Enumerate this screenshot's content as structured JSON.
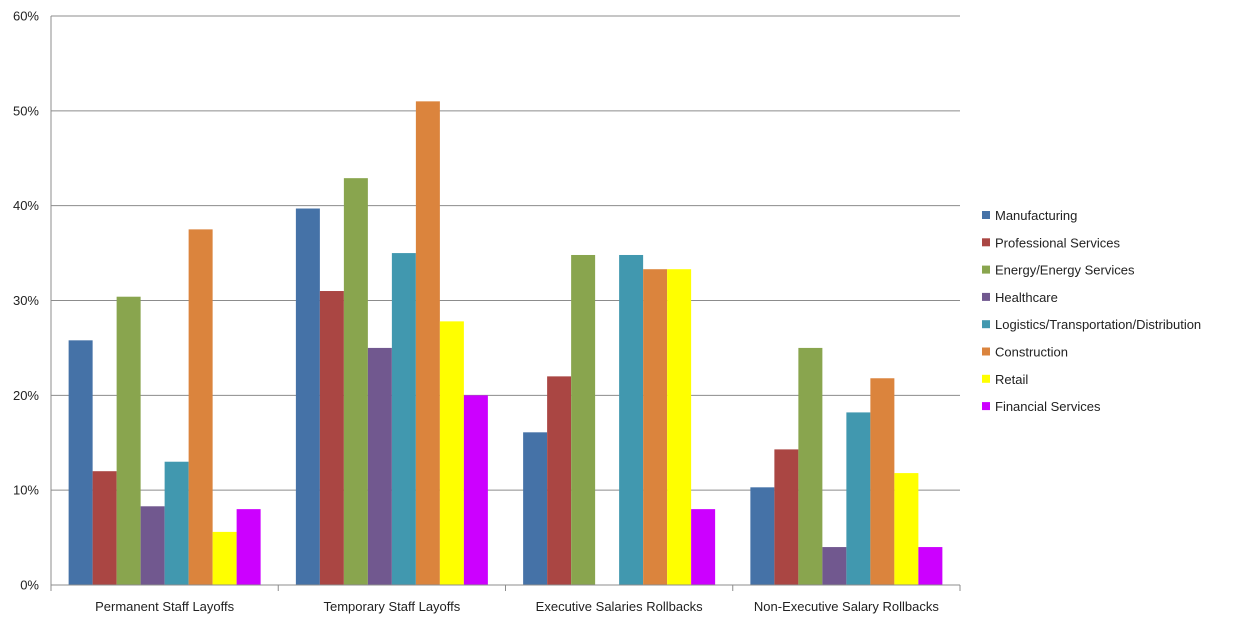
{
  "chart_data": {
    "type": "bar",
    "title": "",
    "xlabel": "",
    "ylabel": "",
    "ylim": [
      0,
      60
    ],
    "yticks": [
      "0%",
      "10%",
      "20%",
      "30%",
      "40%",
      "50%",
      "60%"
    ],
    "grid": true,
    "legend_position": "right",
    "categories": [
      "Permanent Staff Layoffs",
      "Temporary Staff Layoffs",
      "Executive Salaries Rollbacks",
      "Non-Executive Salary Rollbacks"
    ],
    "series": [
      {
        "name": "Manufacturing",
        "color": "#4572A7",
        "values": [
          25.8,
          39.7,
          16.1,
          10.3
        ]
      },
      {
        "name": "Professional Services",
        "color": "#AA4643",
        "values": [
          12.0,
          31.0,
          22.0,
          14.3
        ]
      },
      {
        "name": "Energy/Energy Services",
        "color": "#89A54E",
        "values": [
          30.4,
          42.9,
          34.8,
          25.0
        ]
      },
      {
        "name": "Healthcare",
        "color": "#71588F",
        "values": [
          8.3,
          25.0,
          0,
          4.0
        ]
      },
      {
        "name": "Logistics/Transportation/Distribution",
        "color": "#4198AF",
        "values": [
          13.0,
          35.0,
          34.8,
          18.2
        ]
      },
      {
        "name": "Construction",
        "color": "#DB843D",
        "values": [
          37.5,
          51.0,
          33.3,
          21.8
        ]
      },
      {
        "name": "Retail",
        "color": "#FFFF00",
        "values": [
          5.6,
          27.8,
          33.3,
          11.8
        ]
      },
      {
        "name": "Financial Services",
        "color": "#CC00FF",
        "values": [
          8.0,
          20.0,
          8.0,
          4.0
        ]
      }
    ]
  }
}
